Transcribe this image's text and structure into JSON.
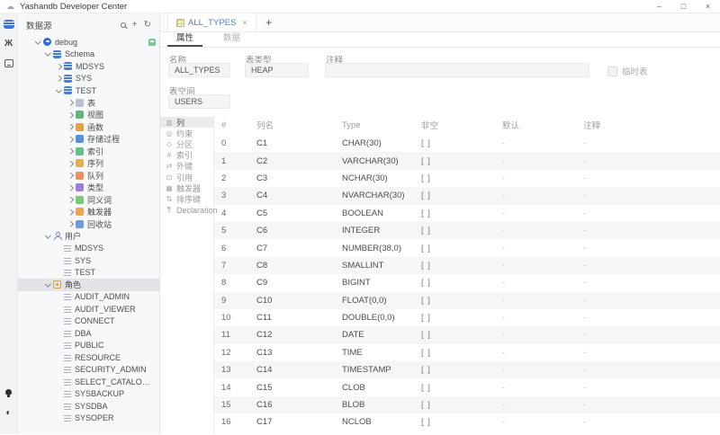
{
  "colors": {
    "accent": "#4d7cd0",
    "selected_row": "#e1e3e6",
    "stripe": "#f6f6f7",
    "connected_green": "#7cc79a"
  },
  "title_bar": {
    "app_title": "Yashandb Developer Center",
    "window_controls": [
      "minimize-icon",
      "maximize-icon",
      "close-icon"
    ],
    "app_icon": "cloud-icon",
    "app_icon_glyph": "☁",
    "minimize_glyph": "–",
    "maximize_glyph": "□",
    "close_glyph": "×"
  },
  "activity_bar": {
    "top_icons": [
      "datasource-icon",
      "bug-icon",
      "console-icon"
    ],
    "bottom_icons": [
      "bulb-icon",
      "theme-toggle-icon"
    ],
    "theme_glyph": "◐",
    "bug_glyph": "Ж"
  },
  "sidebar": {
    "header": {
      "title": "数据源",
      "icons": [
        "search-icon",
        "add-icon",
        "refresh-icon"
      ],
      "add_glyph": "+",
      "refresh_glyph": "↻"
    },
    "tree": [
      {
        "label": "debug",
        "level": 0,
        "chev": "down",
        "icon": "conn",
        "badge": true
      },
      {
        "label": "Schema",
        "level": 1,
        "chev": "down",
        "icon": "schema"
      },
      {
        "label": "MDSYS",
        "level": 2,
        "chev": "right",
        "icon": "schema"
      },
      {
        "label": "SYS",
        "level": 2,
        "chev": "right",
        "icon": "schema"
      },
      {
        "label": "TEST",
        "level": 2,
        "chev": "down",
        "icon": "schema"
      },
      {
        "label": "表",
        "level": 3,
        "chev": "right",
        "icon": "table"
      },
      {
        "label": "视图",
        "level": 3,
        "chev": "right",
        "icon": "view"
      },
      {
        "label": "函数",
        "level": 3,
        "chev": "right",
        "icon": "function"
      },
      {
        "label": "存储过程",
        "level": 3,
        "chev": "right",
        "icon": "procedure"
      },
      {
        "label": "索引",
        "level": 3,
        "chev": "right",
        "icon": "index"
      },
      {
        "label": "序列",
        "level": 3,
        "chev": "right",
        "icon": "sequence"
      },
      {
        "label": "队列",
        "level": 3,
        "chev": "right",
        "icon": "queue"
      },
      {
        "label": "类型",
        "level": 3,
        "chev": "right",
        "icon": "type"
      },
      {
        "label": "同义词",
        "level": 3,
        "chev": "right",
        "icon": "synonym"
      },
      {
        "label": "触发器",
        "level": 3,
        "chev": "right",
        "icon": "trigger"
      },
      {
        "label": "回收站",
        "level": 3,
        "chev": "right",
        "icon": "recycle"
      },
      {
        "label": "用户",
        "level": 1,
        "chev": "down",
        "icon": "user"
      },
      {
        "label": "MDSYS",
        "level": 2,
        "chev": "none",
        "icon": "listitem"
      },
      {
        "label": "SYS",
        "level": 2,
        "chev": "none",
        "icon": "listitem"
      },
      {
        "label": "TEST",
        "level": 2,
        "chev": "none",
        "icon": "listitem"
      },
      {
        "label": "角色",
        "level": 1,
        "chev": "down",
        "icon": "role",
        "selected": true
      },
      {
        "label": "AUDIT_ADMIN",
        "level": 2,
        "chev": "none",
        "icon": "listitem"
      },
      {
        "label": "AUDIT_VIEWER",
        "level": 2,
        "chev": "none",
        "icon": "listitem"
      },
      {
        "label": "CONNECT",
        "level": 2,
        "chev": "none",
        "icon": "listitem"
      },
      {
        "label": "DBA",
        "level": 2,
        "chev": "none",
        "icon": "listitem"
      },
      {
        "label": "PUBLIC",
        "level": 2,
        "chev": "none",
        "icon": "listitem"
      },
      {
        "label": "RESOURCE",
        "level": 2,
        "chev": "none",
        "icon": "listitem"
      },
      {
        "label": "SECURITY_ADMIN",
        "level": 2,
        "chev": "none",
        "icon": "listitem"
      },
      {
        "label": "SELECT_CATALOG_ROLE",
        "level": 2,
        "chev": "none",
        "icon": "listitem"
      },
      {
        "label": "SYSBACKUP",
        "level": 2,
        "chev": "none",
        "icon": "listitem"
      },
      {
        "label": "SYSDBA",
        "level": 2,
        "chev": "none",
        "icon": "listitem"
      },
      {
        "label": "SYSOPER",
        "level": 2,
        "chev": "none",
        "icon": "listitem"
      }
    ]
  },
  "main": {
    "tab": {
      "icon": "table-grid-icon",
      "label": "ALL_TYPES",
      "close_glyph": "×",
      "add_glyph": "+"
    },
    "subtabs": [
      {
        "label": "属性",
        "active": true
      },
      {
        "label": "数据",
        "active": false
      }
    ],
    "form": {
      "name_label": "名称",
      "name_value": "ALL_TYPES",
      "type_label": "表类型",
      "type_value": "HEAP",
      "comment_label": "注释",
      "comment_value": "",
      "temp_checkbox_label": "临时表",
      "temp_checked": false,
      "tablespace_label": "表空间",
      "tablespace_value": "USERS"
    },
    "section_nav": [
      {
        "label": "列",
        "icon": "columns",
        "active": true
      },
      {
        "label": "约束",
        "icon": "constraint",
        "active": false
      },
      {
        "label": "分区",
        "icon": "partition",
        "active": false
      },
      {
        "label": "索引",
        "icon": "indexkey",
        "active": false
      },
      {
        "label": "外键",
        "icon": "fkey",
        "active": false
      },
      {
        "label": "引用",
        "icon": "reference",
        "active": false
      },
      {
        "label": "触发器",
        "icon": "trigger2",
        "active": false
      },
      {
        "label": "排序键",
        "icon": "sortkey",
        "active": false
      },
      {
        "label": "Declaration",
        "icon": "declaration",
        "active": false
      }
    ],
    "table": {
      "columns": {
        "num": "#",
        "name": "列名",
        "type": "Type",
        "notnull": "非空",
        "default": "默认",
        "comment": "注释"
      },
      "rows": [
        {
          "n": "0",
          "name": "C1",
          "type": "CHAR(30)",
          "nn": "[ ]",
          "def": "-",
          "com": "-"
        },
        {
          "n": "1",
          "name": "C2",
          "type": "VARCHAR(30)",
          "nn": "[ ]",
          "def": "-",
          "com": "-"
        },
        {
          "n": "2",
          "name": "C3",
          "type": "NCHAR(30)",
          "nn": "[ ]",
          "def": "-",
          "com": "-"
        },
        {
          "n": "3",
          "name": "C4",
          "type": "NVARCHAR(30)",
          "nn": "[ ]",
          "def": "-",
          "com": "-"
        },
        {
          "n": "4",
          "name": "C5",
          "type": "BOOLEAN",
          "nn": "[ ]",
          "def": "-",
          "com": "-"
        },
        {
          "n": "5",
          "name": "C6",
          "type": "INTEGER",
          "nn": "[ ]",
          "def": "-",
          "com": "-"
        },
        {
          "n": "6",
          "name": "C7",
          "type": "NUMBER(38,0)",
          "nn": "[ ]",
          "def": "-",
          "com": "-"
        },
        {
          "n": "7",
          "name": "C8",
          "type": "SMALLINT",
          "nn": "[ ]",
          "def": "-",
          "com": "-"
        },
        {
          "n": "8",
          "name": "C9",
          "type": "BIGINT",
          "nn": "[ ]",
          "def": "-",
          "com": "-"
        },
        {
          "n": "9",
          "name": "C10",
          "type": "FLOAT(0,0)",
          "nn": "[ ]",
          "def": "-",
          "com": "-"
        },
        {
          "n": "10",
          "name": "C11",
          "type": "DOUBLE(0,0)",
          "nn": "[ ]",
          "def": "-",
          "com": "-"
        },
        {
          "n": "11",
          "name": "C12",
          "type": "DATE",
          "nn": "[ ]",
          "def": "-",
          "com": "-"
        },
        {
          "n": "12",
          "name": "C13",
          "type": "TIME",
          "nn": "[ ]",
          "def": "-",
          "com": "-"
        },
        {
          "n": "13",
          "name": "C14",
          "type": "TIMESTAMP",
          "nn": "[ ]",
          "def": "-",
          "com": "-"
        },
        {
          "n": "14",
          "name": "C15",
          "type": "CLOB",
          "nn": "[ ]",
          "def": "-",
          "com": "-"
        },
        {
          "n": "15",
          "name": "C16",
          "type": "BLOB",
          "nn": "[ ]",
          "def": "-",
          "com": "-"
        },
        {
          "n": "16",
          "name": "C17",
          "type": "NCLOB",
          "nn": "[ ]",
          "def": "-",
          "com": "-"
        }
      ]
    }
  }
}
